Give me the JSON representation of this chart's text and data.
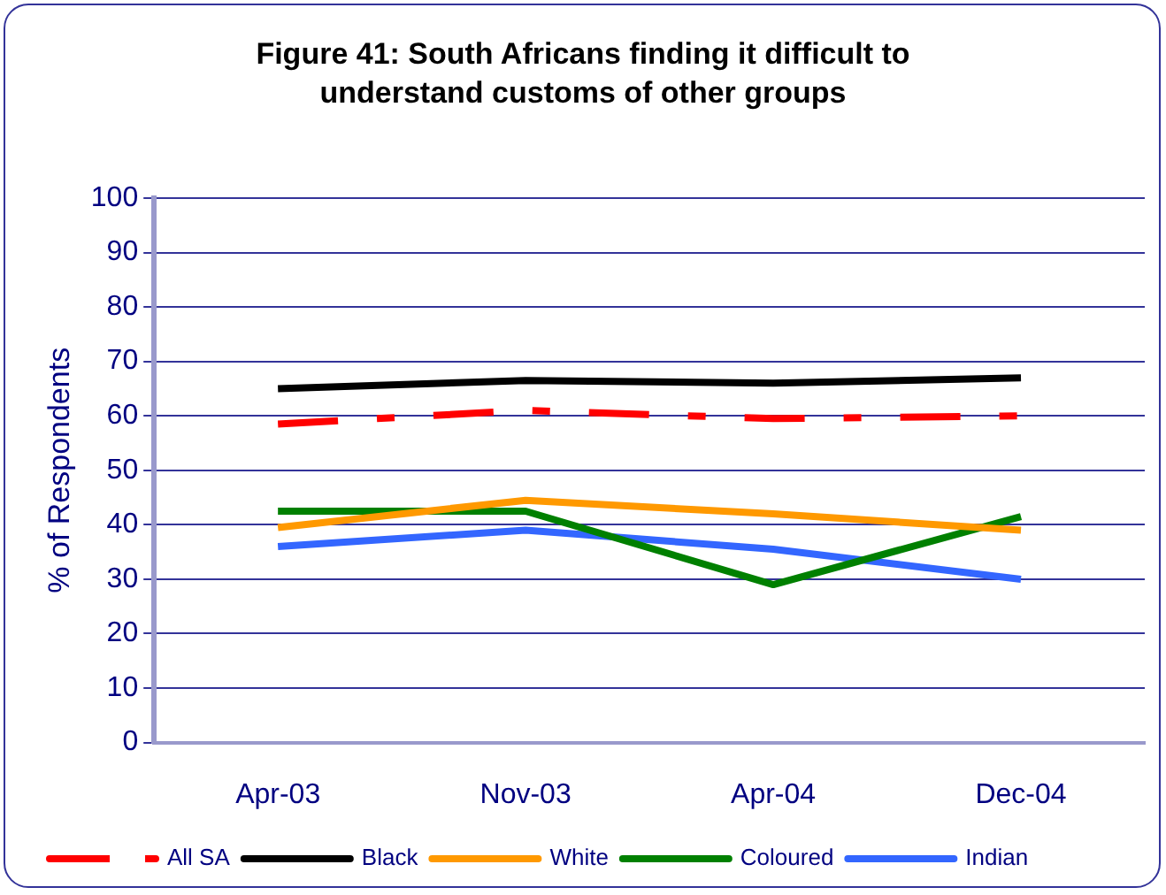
{
  "chart_data": {
    "type": "line",
    "title": "Figure 41: South Africans finding it difficult to understand customs of other groups",
    "ylabel": "% of Respondents",
    "categories": [
      "Apr-03",
      "Nov-03",
      "Apr-04",
      "Dec-04"
    ],
    "series": [
      {
        "name": "All SA",
        "color": "#ff0000",
        "values": [
          58.5,
          61,
          59.5,
          60
        ],
        "line_style": "dashed"
      },
      {
        "name": "Black",
        "color": "#000000",
        "values": [
          65,
          66.5,
          66,
          67
        ]
      },
      {
        "name": "White",
        "color": "#ff9900",
        "values": [
          39.5,
          44.5,
          42,
          39
        ]
      },
      {
        "name": "Coloured",
        "color": "#008000",
        "values": [
          42.5,
          42.5,
          29,
          41.5
        ]
      },
      {
        "name": "Indian",
        "color": "#3366ff",
        "values": [
          36,
          39,
          35.5,
          30
        ]
      }
    ],
    "ylim": [
      0,
      100
    ],
    "yticks": [
      0,
      10,
      20,
      30,
      40,
      50,
      60,
      70,
      80,
      90,
      100
    ],
    "grid": "y",
    "legend": "bottom",
    "marker": "none",
    "line_style": "solid"
  }
}
